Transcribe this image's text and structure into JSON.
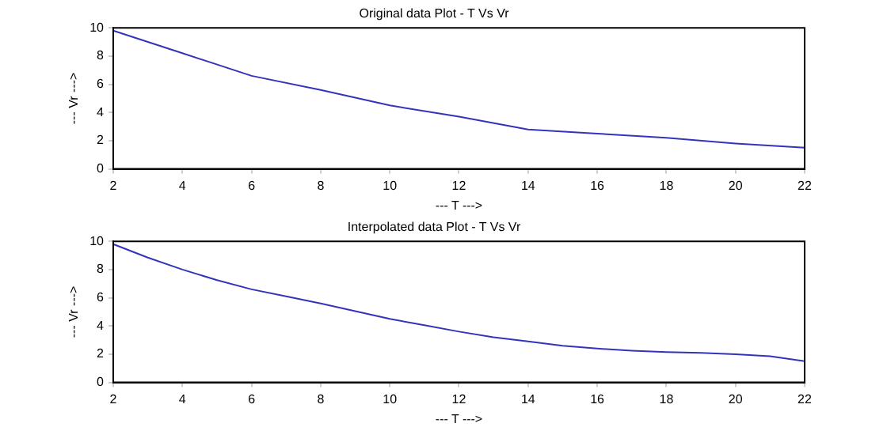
{
  "chart_data": [
    {
      "type": "line",
      "title": "Original data Plot - T Vs Vr",
      "xlabel": "--- T --->",
      "ylabel": "--- Vr --->",
      "x": [
        2,
        4,
        6,
        8,
        10,
        12,
        14,
        16,
        18,
        20,
        22
      ],
      "series": [
        {
          "color": "#3333bb",
          "values": [
            9.8,
            8.2,
            6.6,
            5.6,
            4.5,
            3.7,
            2.8,
            2.5,
            2.2,
            1.8,
            1.5
          ]
        }
      ],
      "xlim": [
        2,
        22
      ],
      "xticks": [
        2,
        4,
        6,
        8,
        10,
        12,
        14,
        16,
        18,
        20,
        22
      ],
      "ylim": [
        0,
        10
      ],
      "yticks": [
        0,
        2,
        4,
        6,
        8,
        10
      ],
      "grid": false,
      "legend": false
    },
    {
      "type": "line",
      "title": "Interpolated data Plot - T Vs Vr",
      "xlabel": "--- T --->",
      "ylabel": "--- Vr --->",
      "x": [
        2,
        3,
        4,
        5,
        6,
        7,
        8,
        9,
        10,
        11,
        12,
        13,
        14,
        15,
        16,
        17,
        18,
        19,
        20,
        21,
        22
      ],
      "series": [
        {
          "color": "#3333bb",
          "values": [
            9.8,
            8.85,
            8.0,
            7.25,
            6.6,
            6.1,
            5.6,
            5.05,
            4.5,
            4.05,
            3.6,
            3.2,
            2.9,
            2.6,
            2.4,
            2.25,
            2.15,
            2.1,
            2.0,
            1.85,
            1.5
          ]
        }
      ],
      "xlim": [
        2,
        22
      ],
      "xticks": [
        2,
        4,
        6,
        8,
        10,
        12,
        14,
        16,
        18,
        20,
        22
      ],
      "ylim": [
        0,
        10
      ],
      "yticks": [
        0,
        2,
        4,
        6,
        8,
        10
      ],
      "grid": false,
      "legend": false
    }
  ]
}
